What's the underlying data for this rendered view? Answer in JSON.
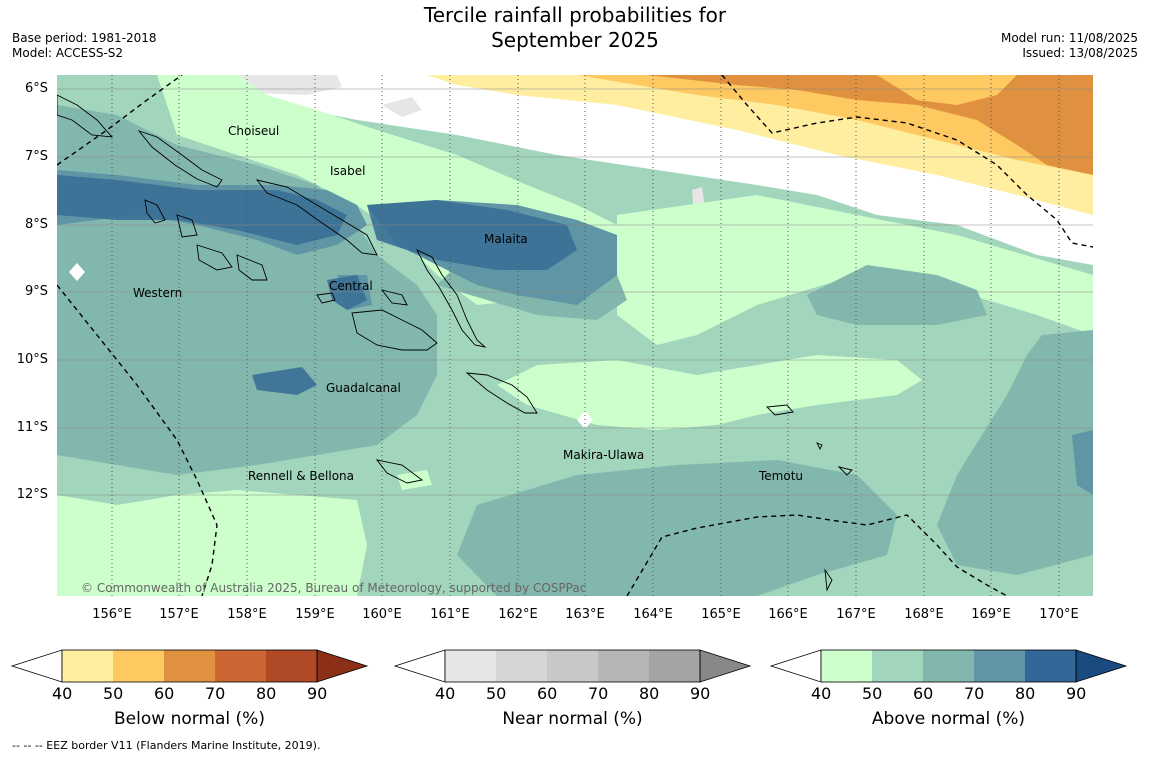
{
  "title_line1": "Tercile rainfall probabilities for",
  "title_line2": "September 2025",
  "base_period": "Base period: 1981-2018",
  "model": "Model: ACCESS-S2",
  "model_run": "Model run: 11/08/2025",
  "issued": "Issued: 13/08/2025",
  "credit": "© Commonwealth of Australia 2025, Bureau of Meteorology, supported by COSPPac",
  "footer": "-- -- -- EEZ border V11 (Flanders Marine Institute, 2019).",
  "lat_labels": [
    "6°S",
    "7°S",
    "8°S",
    "9°S",
    "10°S",
    "11°S",
    "12°S"
  ],
  "lon_labels": [
    "156°E",
    "157°E",
    "158°E",
    "159°E",
    "160°E",
    "161°E",
    "162°E",
    "163°E",
    "164°E",
    "165°E",
    "166°E",
    "167°E",
    "168°E",
    "169°E",
    "170°E"
  ],
  "places": {
    "choiseul": "Choiseul",
    "isabel": "Isabel",
    "malaita": "Malaita",
    "western": "Western",
    "central": "Central",
    "guadalcanal": "Guadalcanal",
    "makira": "Makira-Ulawa",
    "rennell": "Rennell & Bellona",
    "temotu": "Temotu"
  },
  "colorbars": {
    "below": {
      "title": "Below normal (%)",
      "ticks": [
        "40",
        "50",
        "60",
        "70",
        "80",
        "90"
      ],
      "colors": [
        "#ffeda0",
        "#fec961",
        "#e0913f",
        "#cc6632",
        "#b04a26",
        "#8b2f17"
      ]
    },
    "near": {
      "title": "Near normal (%)",
      "ticks": [
        "40",
        "50",
        "60",
        "70",
        "80",
        "90"
      ],
      "colors": [
        "#e6e6e6",
        "#d6d6d6",
        "#c8c8c8",
        "#b6b6b6",
        "#a4a4a4",
        "#888888"
      ]
    },
    "above": {
      "title": "Above normal (%)",
      "ticks": [
        "40",
        "50",
        "60",
        "70",
        "80",
        "90"
      ],
      "colors": [
        "#ccffcc",
        "#a1d5bc",
        "#82b7ad",
        "#5f95a4",
        "#336699",
        "#1a4a80"
      ]
    }
  }
}
